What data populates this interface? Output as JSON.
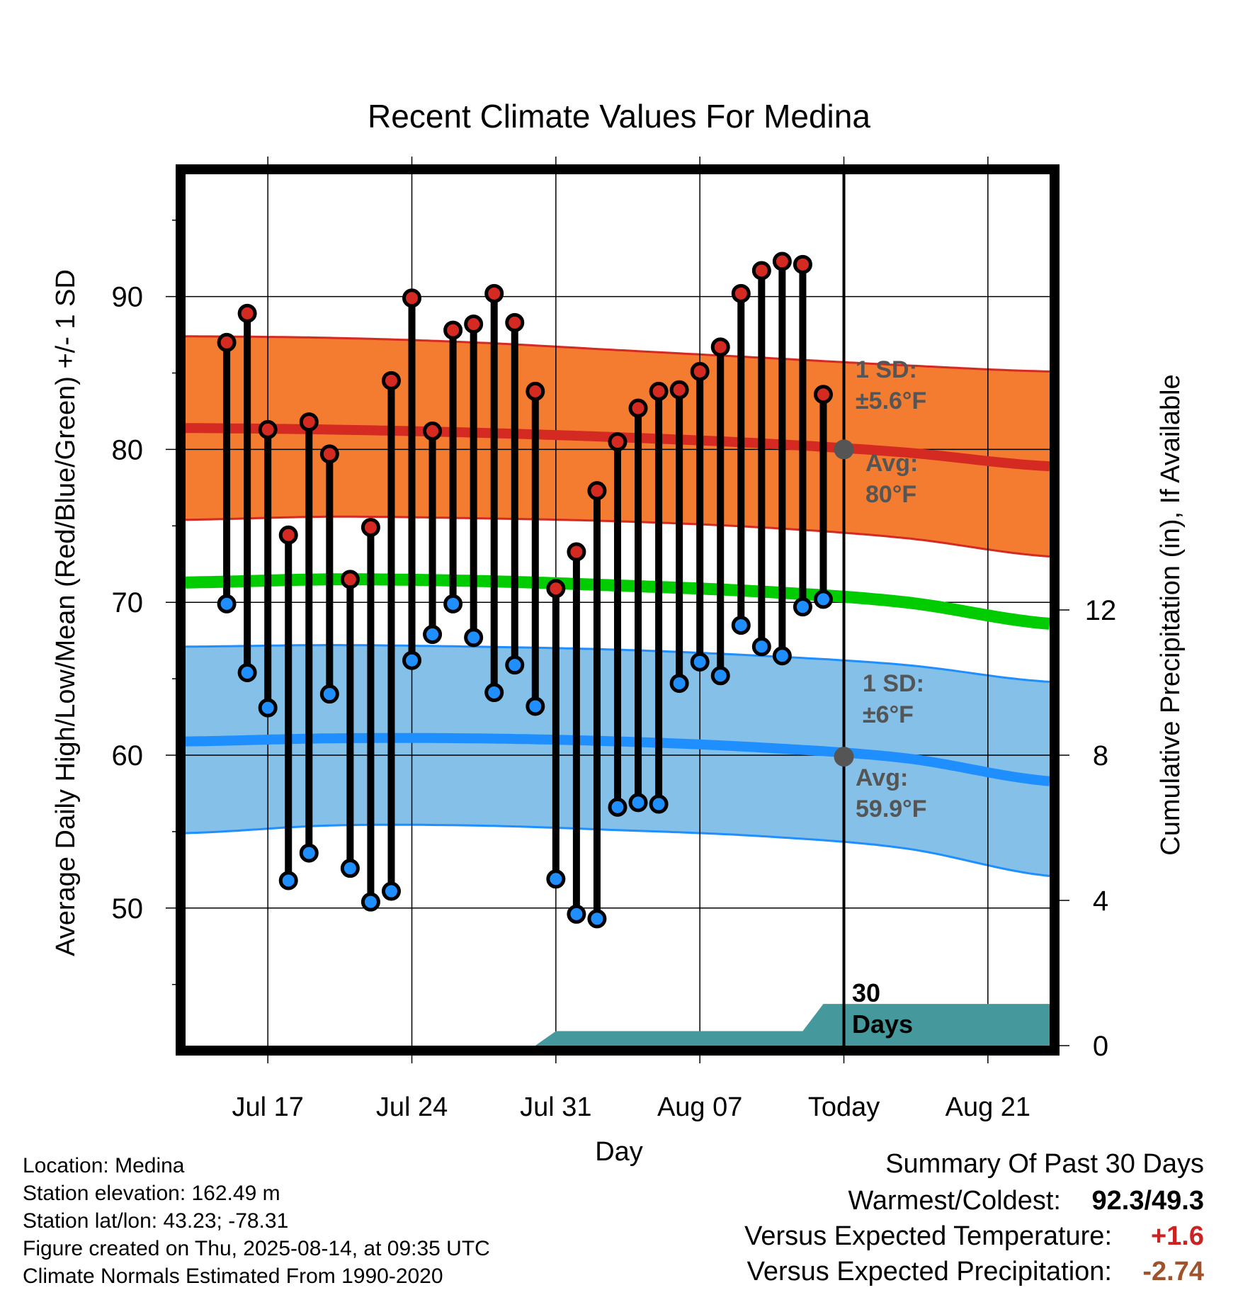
{
  "chart_data": {
    "type": "line",
    "title": "Recent Climate Values For Medina",
    "xlabel": "Day",
    "ylabel": "Average Daily High/Low/Mean (Red/Blue/Green) +/- 1 SD",
    "y2label": "Cumulative Precipitation (in), If Available",
    "ylim": [
      41,
      98
    ],
    "y2lim": [
      0,
      24
    ],
    "xlim": [
      "2025-07-13",
      "2025-08-24"
    ],
    "yticks": [
      50,
      60,
      70,
      80,
      90
    ],
    "y2ticks": [
      0,
      4,
      8,
      12
    ],
    "xtick_labels": [
      "Jul 17",
      "Jul 24",
      "Jul 31",
      "Aug 07",
      "Today",
      "Aug 21"
    ],
    "xtick_dates": [
      "2025-07-17",
      "2025-07-24",
      "2025-07-31",
      "2025-08-07",
      "2025-08-14",
      "2025-08-21"
    ],
    "grid": true,
    "today": "2025-08-14",
    "window_label": "30 Days",
    "observed": {
      "dates": [
        "2025-07-15",
        "2025-07-16",
        "2025-07-17",
        "2025-07-18",
        "2025-07-19",
        "2025-07-20",
        "2025-07-21",
        "2025-07-22",
        "2025-07-23",
        "2025-07-24",
        "2025-07-25",
        "2025-07-26",
        "2025-07-27",
        "2025-07-28",
        "2025-07-29",
        "2025-07-30",
        "2025-07-31",
        "2025-08-01",
        "2025-08-02",
        "2025-08-03",
        "2025-08-04",
        "2025-08-05",
        "2025-08-06",
        "2025-08-07",
        "2025-08-08",
        "2025-08-09",
        "2025-08-10",
        "2025-08-11",
        "2025-08-12",
        "2025-08-13"
      ],
      "highs": [
        87.0,
        88.9,
        81.3,
        74.4,
        81.8,
        79.7,
        71.5,
        74.9,
        84.5,
        89.9,
        81.2,
        87.8,
        88.2,
        90.2,
        88.3,
        83.8,
        70.9,
        73.3,
        77.3,
        80.5,
        82.7,
        83.8,
        83.9,
        85.1,
        86.7,
        90.2,
        91.7,
        92.3,
        92.1,
        83.6
      ],
      "lows": [
        69.9,
        65.4,
        63.1,
        51.8,
        53.6,
        64.0,
        52.6,
        50.4,
        51.1,
        66.2,
        67.9,
        69.9,
        67.7,
        64.1,
        65.9,
        63.2,
        51.9,
        49.6,
        49.3,
        56.6,
        56.9,
        56.8,
        64.7,
        66.1,
        65.2,
        68.5,
        67.1,
        66.5,
        69.7,
        70.2
      ]
    },
    "normals": {
      "dates": [
        "2025-07-13",
        "2025-07-20",
        "2025-07-27",
        "2025-08-03",
        "2025-08-10",
        "2025-08-17",
        "2025-08-24"
      ],
      "high_mean": [
        81.4,
        81.3,
        81.1,
        80.8,
        80.4,
        79.8,
        78.9
      ],
      "high_upper": [
        87.4,
        87.3,
        87.0,
        86.5,
        86.0,
        85.5,
        85.1
      ],
      "high_lower": [
        75.4,
        75.6,
        75.5,
        75.3,
        74.9,
        74.2,
        73.0
      ],
      "low_mean": [
        60.9,
        61.1,
        61.1,
        60.9,
        60.5,
        59.8,
        58.3
      ],
      "low_upper": [
        67.1,
        67.2,
        67.1,
        66.9,
        66.5,
        65.9,
        64.8
      ],
      "low_lower": [
        54.9,
        55.4,
        55.4,
        55.1,
        54.7,
        53.9,
        52.1
      ],
      "mean": [
        71.3,
        71.5,
        71.4,
        71.1,
        70.7,
        70.0,
        68.6
      ]
    },
    "precipitation": {
      "dates": [
        "2025-07-13",
        "2025-07-30",
        "2025-07-31",
        "2025-08-12",
        "2025-08-13",
        "2025-08-24"
      ],
      "values": [
        0.0,
        0.0,
        0.4,
        0.4,
        1.15,
        1.15
      ]
    },
    "annotations": {
      "high_sd": [
        "1 SD:",
        "±5.6°F"
      ],
      "high_avg": [
        "Avg:",
        "80°F"
      ],
      "low_sd": [
        "1 SD:",
        "±6°F"
      ],
      "low_avg": [
        "Avg:",
        "59.9°F"
      ]
    },
    "today_high_normal": 80,
    "today_low_normal": 59.9,
    "colors": {
      "high_band": "#f47c30",
      "high_mean": "#d42a22",
      "low_band": "#84c0e8",
      "low_mean": "#1f8fff",
      "mean": "#00cc00",
      "precip": "#45999c",
      "high_dot": "#d42a22",
      "low_dot": "#1f8fff",
      "annotation": "#555555"
    }
  },
  "footer": {
    "info_lines": [
      "Location: Medina",
      "Station elevation: 162.49 m",
      "Station lat/lon: 43.23; -78.31",
      "Figure created on Thu, 2025-08-14, at 09:35 UTC",
      "Climate Normals Estimated From 1990-2020"
    ],
    "summary_title": "Summary Of Past 30 Days",
    "warmest_label": "Warmest/Coldest:",
    "warmest_value": "92.3/49.3",
    "temp_label": "Versus Expected Temperature:",
    "temp_value": "+1.6",
    "temp_color": "#cc2222",
    "precip_label": "Versus Expected Precipitation:",
    "precip_value": "-2.74",
    "precip_color": "#a0522d"
  }
}
